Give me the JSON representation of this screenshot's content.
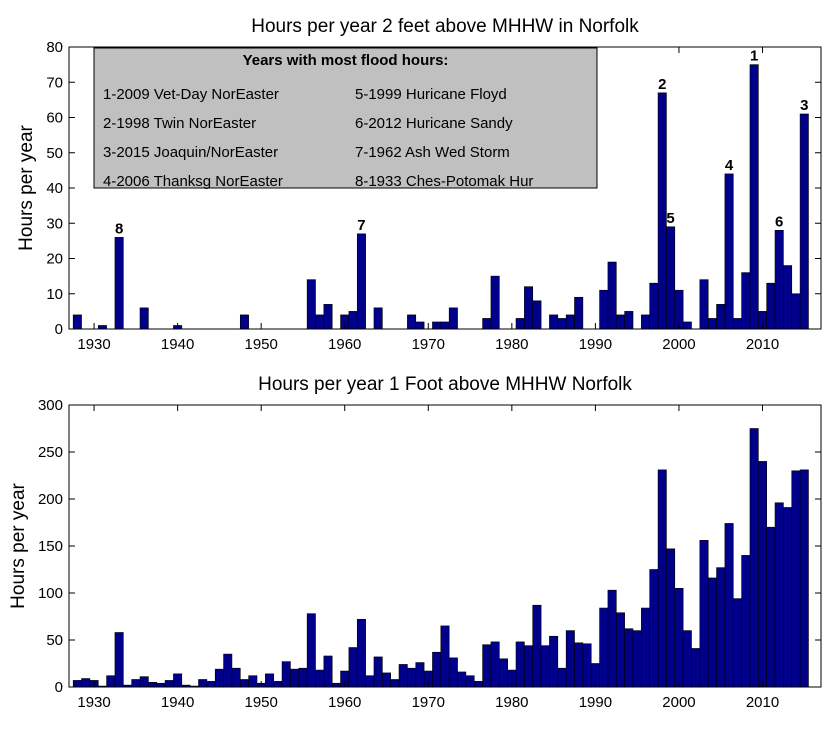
{
  "colors": {
    "bar": "#00008B",
    "legend_bg": "#C0C0C0"
  },
  "chart_data": [
    {
      "type": "bar",
      "title": "Hours per year 2 feet above MHHW in Norfolk",
      "xlabel": "",
      "ylabel": "Hours per year",
      "xlim": [
        1927,
        2017
      ],
      "ylim": [
        0,
        80
      ],
      "xticks": [
        1930,
        1940,
        1950,
        1960,
        1970,
        1980,
        1990,
        2000,
        2010
      ],
      "yticks": [
        0,
        10,
        20,
        30,
        40,
        50,
        60,
        70,
        80
      ],
      "x": [
        1928,
        1931,
        1933,
        1936,
        1940,
        1948,
        1956,
        1957,
        1958,
        1960,
        1961,
        1962,
        1964,
        1968,
        1969,
        1971,
        1972,
        1973,
        1977,
        1978,
        1981,
        1982,
        1983,
        1985,
        1986,
        1987,
        1988,
        1991,
        1992,
        1993,
        1994,
        1996,
        1997,
        1998,
        1999,
        2000,
        2001,
        2003,
        2004,
        2005,
        2006,
        2007,
        2008,
        2009,
        2010,
        2011,
        2012,
        2013,
        2014,
        2015
      ],
      "values": [
        4,
        1,
        26,
        6,
        1,
        4,
        14,
        4,
        7,
        4,
        5,
        27,
        6,
        4,
        2,
        2,
        2,
        6,
        3,
        15,
        3,
        12,
        8,
        4,
        3,
        4,
        9,
        11,
        19,
        4,
        5,
        4,
        13,
        67,
        29,
        11,
        2,
        14,
        3,
        7,
        44,
        3,
        16,
        75,
        5,
        13,
        28,
        18,
        10,
        61
      ],
      "annotations": [
        {
          "label": "1",
          "x": 2009
        },
        {
          "label": "2",
          "x": 1998
        },
        {
          "label": "3",
          "x": 2015
        },
        {
          "label": "4",
          "x": 2006
        },
        {
          "label": "5",
          "x": 1999
        },
        {
          "label": "6",
          "x": 2012
        },
        {
          "label": "7",
          "x": 1962
        },
        {
          "label": "8",
          "x": 1933
        }
      ],
      "legend": {
        "title": "Years with most flood hours:",
        "placement": "top-left",
        "items": [
          "1-2009 Vet-Day NorEaster",
          "2-1998 Twin NorEaster",
          "3-2015 Joaquin/NorEaster",
          "4-2006 Thanksg NorEaster",
          "5-1999 Huricane Floyd",
          "6-2012 Huricane Sandy",
          "7-1962 Ash Wed Storm",
          "8-1933 Ches-Potomak Hur"
        ]
      }
    },
    {
      "type": "bar",
      "title": "Hours per year 1 Foot above MHHW Norfolk",
      "xlabel": "",
      "ylabel": "Hours per year",
      "xlim": [
        1927,
        2017
      ],
      "ylim": [
        0,
        300
      ],
      "xticks": [
        1930,
        1940,
        1950,
        1960,
        1970,
        1980,
        1990,
        2000,
        2010
      ],
      "yticks": [
        0,
        50,
        100,
        150,
        200,
        250,
        300
      ],
      "x": [
        1928,
        1929,
        1930,
        1931,
        1932,
        1933,
        1934,
        1935,
        1936,
        1937,
        1938,
        1939,
        1940,
        1941,
        1942,
        1943,
        1944,
        1945,
        1946,
        1947,
        1948,
        1949,
        1950,
        1951,
        1952,
        1953,
        1954,
        1955,
        1956,
        1957,
        1958,
        1959,
        1960,
        1961,
        1962,
        1963,
        1964,
        1965,
        1966,
        1967,
        1968,
        1969,
        1970,
        1971,
        1972,
        1973,
        1974,
        1975,
        1976,
        1977,
        1978,
        1979,
        1980,
        1981,
        1982,
        1983,
        1984,
        1985,
        1986,
        1987,
        1988,
        1989,
        1990,
        1991,
        1992,
        1993,
        1994,
        1995,
        1996,
        1997,
        1998,
        1999,
        2000,
        2001,
        2002,
        2003,
        2004,
        2005,
        2006,
        2007,
        2008,
        2009,
        2010,
        2011,
        2012,
        2013,
        2014,
        2015
      ],
      "values": [
        7,
        9,
        7,
        1,
        12,
        58,
        2,
        8,
        11,
        5,
        4,
        7,
        14,
        2,
        1,
        8,
        6,
        19,
        35,
        20,
        8,
        12,
        4,
        14,
        6,
        27,
        19,
        20,
        78,
        18,
        33,
        4,
        17,
        42,
        72,
        12,
        32,
        15,
        8,
        24,
        20,
        26,
        17,
        37,
        65,
        31,
        16,
        12,
        6,
        45,
        48,
        30,
        18,
        48,
        44,
        87,
        44,
        54,
        20,
        60,
        47,
        46,
        25,
        84,
        103,
        79,
        62,
        60,
        84,
        125,
        231,
        147,
        105,
        60,
        41,
        156,
        116,
        127,
        174,
        94,
        140,
        275,
        240,
        170,
        196,
        191,
        230,
        231
      ]
    }
  ]
}
